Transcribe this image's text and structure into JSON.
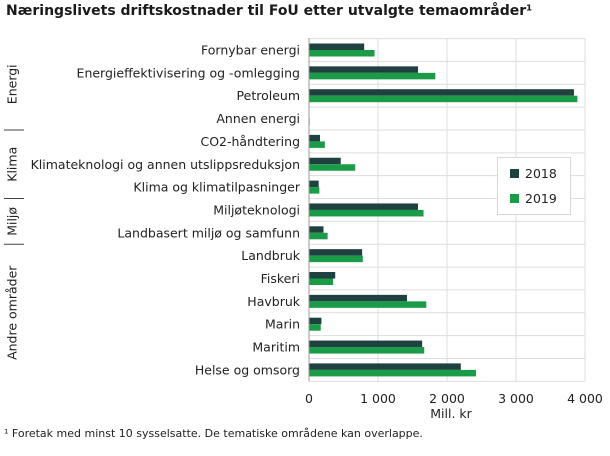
{
  "title": "Næringslivets driftskostnader til FoU etter utvalgte temaområder¹",
  "footnote": "¹ Foretak med minst 10 sysselsatte. De tematiske områdene kan overlappe.",
  "colors": {
    "s2018": "#1f4240",
    "s2019": "#1a9b47",
    "grid": "#dddddd",
    "axis": "#999999"
  },
  "chart_data": {
    "type": "bar",
    "orientation": "horizontal",
    "title": "Næringslivets driftskostnader til FoU etter utvalgte temaområder¹",
    "xlabel": "Mill. kr",
    "xlim": [
      0,
      4000
    ],
    "xticks": [
      0,
      1000,
      2000,
      3000,
      4000
    ],
    "xtick_labels": [
      "0",
      "1 000",
      "2 000",
      "3 000",
      "4 000"
    ],
    "categories": [
      "Fornybar energi",
      "Energieffektivisering og -omlegging",
      "Petroleum",
      "Annen energi",
      "CO2-håndtering",
      "Klimateknologi og annen utslippsreduksjon",
      "Klima og klimatilpasninger",
      "Miljøteknologi",
      "Landbasert miljø og samfunn",
      "Landbruk",
      "Fiskeri",
      "Havbruk",
      "Marin",
      "Maritim",
      "Helse og omsorg"
    ],
    "groups": [
      {
        "name": "Energi",
        "start": 0,
        "end": 3
      },
      {
        "name": "Klima",
        "start": 4,
        "end": 6
      },
      {
        "name": "Miljø",
        "start": 7,
        "end": 8
      },
      {
        "name": "Andre områder",
        "start": 9,
        "end": 14
      }
    ],
    "series": [
      {
        "name": "2018",
        "values": [
          800,
          1580,
          3840,
          5,
          160,
          460,
          140,
          1580,
          210,
          770,
          380,
          1420,
          180,
          1640,
          2200
        ]
      },
      {
        "name": "2019",
        "values": [
          950,
          1830,
          3890,
          10,
          230,
          670,
          150,
          1660,
          270,
          780,
          350,
          1700,
          170,
          1670,
          2420
        ]
      }
    ],
    "legend": {
      "position": "right",
      "items": [
        "2018",
        "2019"
      ]
    }
  }
}
